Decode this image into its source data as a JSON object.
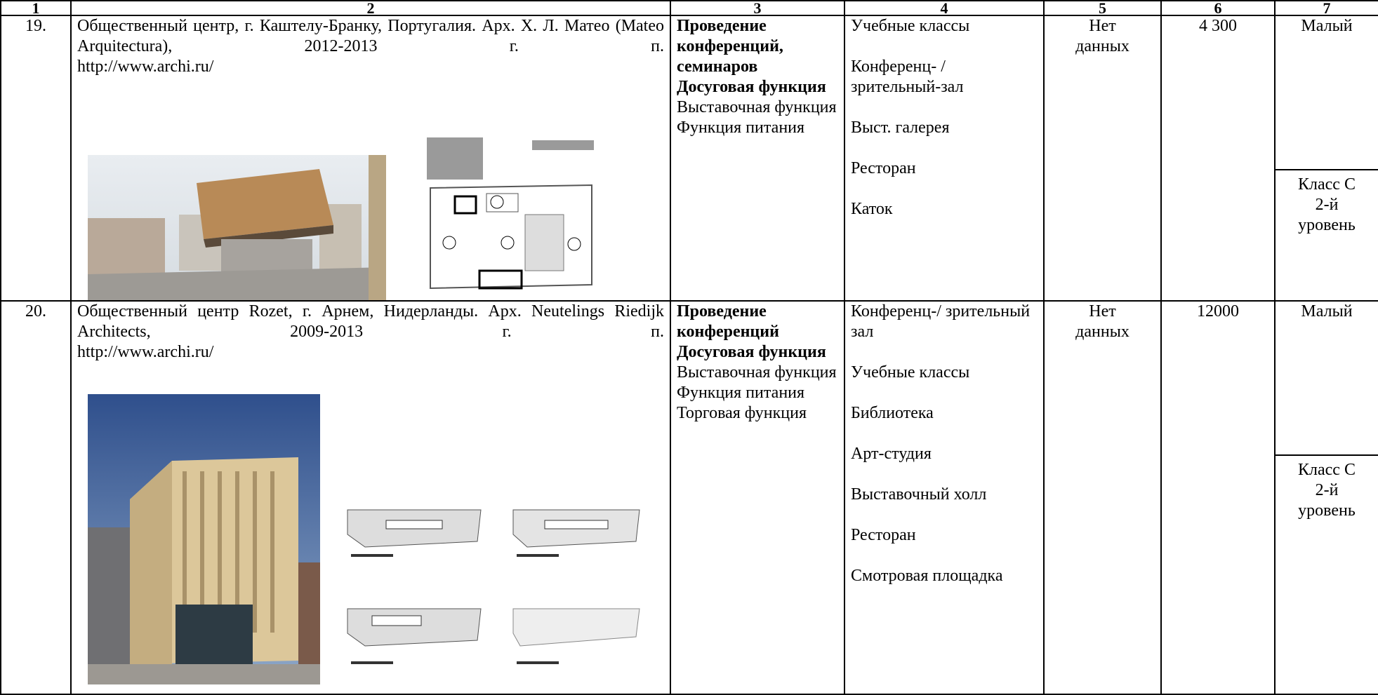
{
  "table": {
    "header": [
      "1",
      "2",
      "3",
      "4",
      "5",
      "6",
      "7"
    ],
    "rows": [
      {
        "number": "19.",
        "description": "Общественный центр, г. Каштелу-Бранку, Португалия. Арх. Х. Л. Матео (Mateo Arquitectura), 2012-2013 г. п.",
        "link": "http://www.archi.ru/",
        "functions_main": [
          "Проведение конференций, семинаров",
          "Досуговая функция"
        ],
        "functions_other": [
          "Выставочная функция",
          "Функция питания"
        ],
        "spaces": [
          "Учебные классы",
          "Конференц- / зрительный-зал",
          "Выст. галерея",
          "Ресторан",
          "Каток"
        ],
        "data_status": [
          "Нет",
          "данных"
        ],
        "area": "4 300",
        "scale": "Малый",
        "class": [
          "Класс С",
          "2-й",
          "уровень"
        ]
      },
      {
        "number": "20.",
        "description": "Общественный центр Rozet, г. Арнем, Нидерланды. Арх. Neutelings Riedijk Architects, 2009-2013 г. п.",
        "link": "http://www.archi.ru/",
        "functions_main": [
          "Проведение конференций",
          "Досуговая функция"
        ],
        "functions_other": [
          "Выставочная функция",
          "Функция питания",
          "Торговая функция"
        ],
        "spaces": [
          "Конференц-/ зрительный зал",
          "Учебные классы",
          "Библиотека",
          "Арт-студия",
          "Выставочный холл",
          "Ресторан",
          "Смотровая площадка"
        ],
        "data_status": [
          "Нет",
          "данных"
        ],
        "area": "12000",
        "scale": "Малый",
        "class": [
          "Класс С",
          "2-й",
          "уровень"
        ]
      }
    ]
  }
}
